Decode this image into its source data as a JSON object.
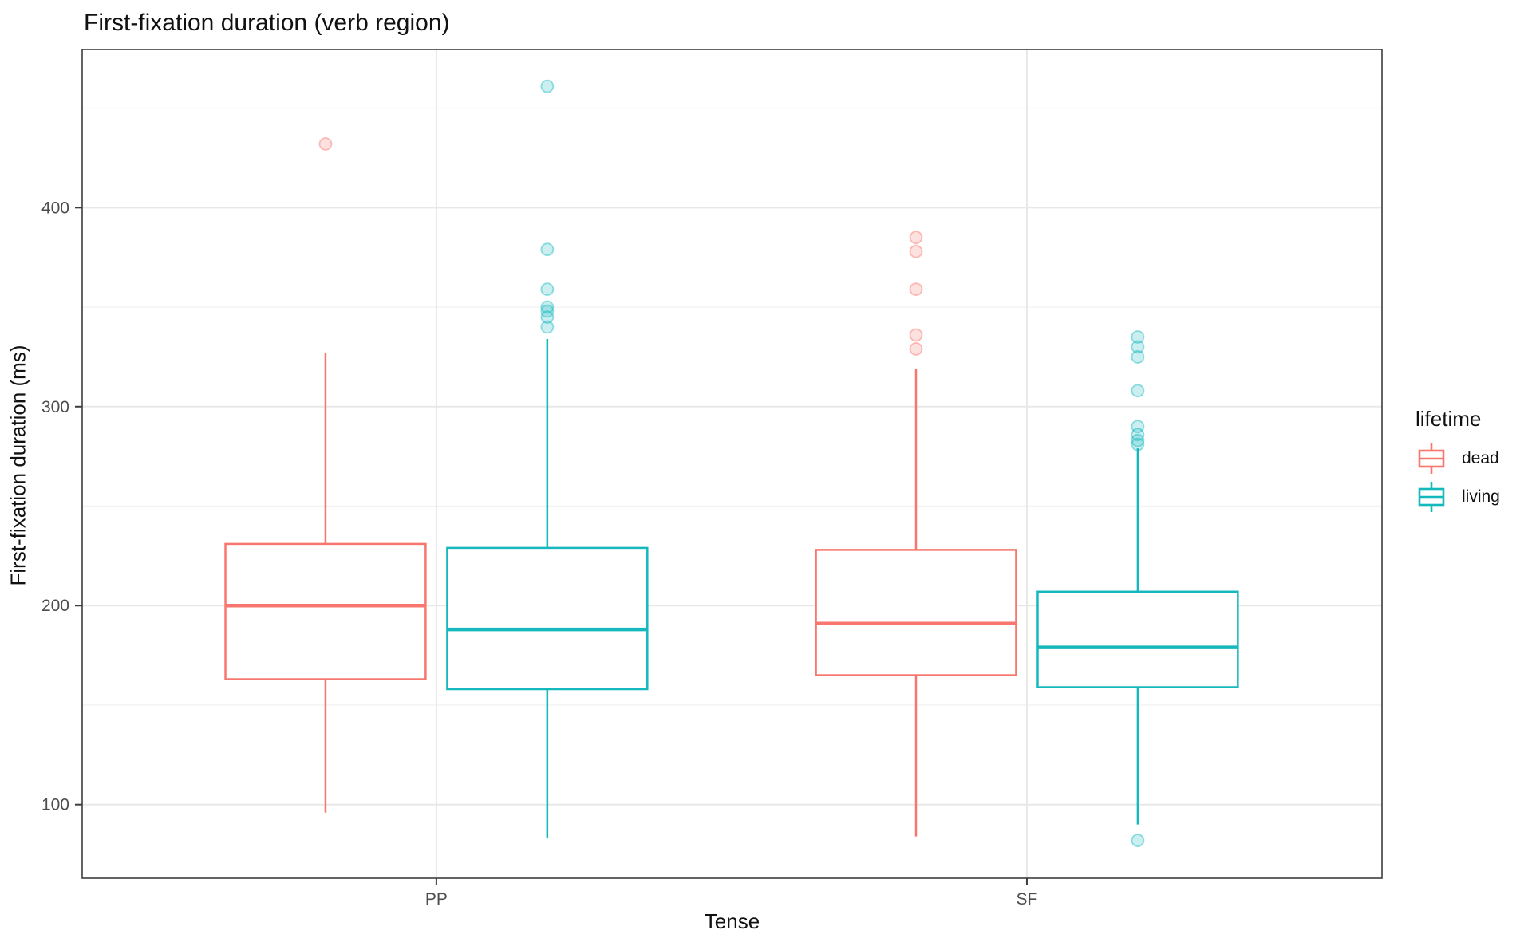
{
  "title": "First-fixation duration (verb region)",
  "axes": {
    "x": {
      "title": "Tense",
      "ticks": [
        {
          "label": "PP",
          "pos": 0.2725
        },
        {
          "label": "SF",
          "pos": 0.7268
        }
      ]
    },
    "y": {
      "title": "First-fixation duration (ms)",
      "major_ticks": [
        100,
        200,
        300,
        400
      ],
      "minor_ticks": [
        150,
        250,
        350,
        450
      ],
      "domain": [
        63,
        479.5
      ]
    }
  },
  "legend": {
    "title": "lifetime",
    "position": "right",
    "items": [
      {
        "label": "dead",
        "color": "#F8766D"
      },
      {
        "label": "living",
        "color": "#14B8BD"
      }
    ]
  },
  "style": {
    "panel_border": "#3D3D3D",
    "grid_major": "#E8E8E8",
    "grid_minor": "#F2F2F2",
    "tick_mark": "#3D3D3D",
    "tick_label": "#4D4D4D",
    "box_fill": "#FFFFFF"
  },
  "chart_data": {
    "type": "boxplot",
    "title": "First-fixation duration (verb region)",
    "xlabel": "Tense",
    "ylabel": "First-fixation duration (ms)",
    "ylim": [
      63,
      479.5
    ],
    "grid": true,
    "legend_position": "right",
    "groups": [
      "PP",
      "SF"
    ],
    "series_legend": "lifetime",
    "box_width_frac": 0.154,
    "dodge_frac": 0.0853,
    "boxes": [
      {
        "group": "PP",
        "lifetime": "dead",
        "color": "#F8766D",
        "whisker_low": 96,
        "q1": 163,
        "median": 200,
        "q3": 231,
        "whisker_high": 327,
        "outliers": [
          432
        ]
      },
      {
        "group": "PP",
        "lifetime": "living",
        "color": "#14B8BD",
        "whisker_low": 83,
        "q1": 158,
        "median": 188,
        "q3": 229,
        "whisker_high": 334,
        "outliers": [
          340,
          345,
          348,
          350,
          359,
          379,
          461
        ]
      },
      {
        "group": "SF",
        "lifetime": "dead",
        "color": "#F8766D",
        "whisker_low": 84,
        "q1": 165,
        "median": 191,
        "q3": 228,
        "whisker_high": 319,
        "outliers": [
          329,
          336,
          359,
          378,
          385
        ]
      },
      {
        "group": "SF",
        "lifetime": "living",
        "color": "#14B8BD",
        "whisker_low": 90,
        "q1": 159,
        "median": 179,
        "q3": 207,
        "whisker_high": 279,
        "outliers": [
          82,
          281,
          283,
          286,
          290,
          308,
          325,
          330,
          335
        ]
      }
    ]
  }
}
